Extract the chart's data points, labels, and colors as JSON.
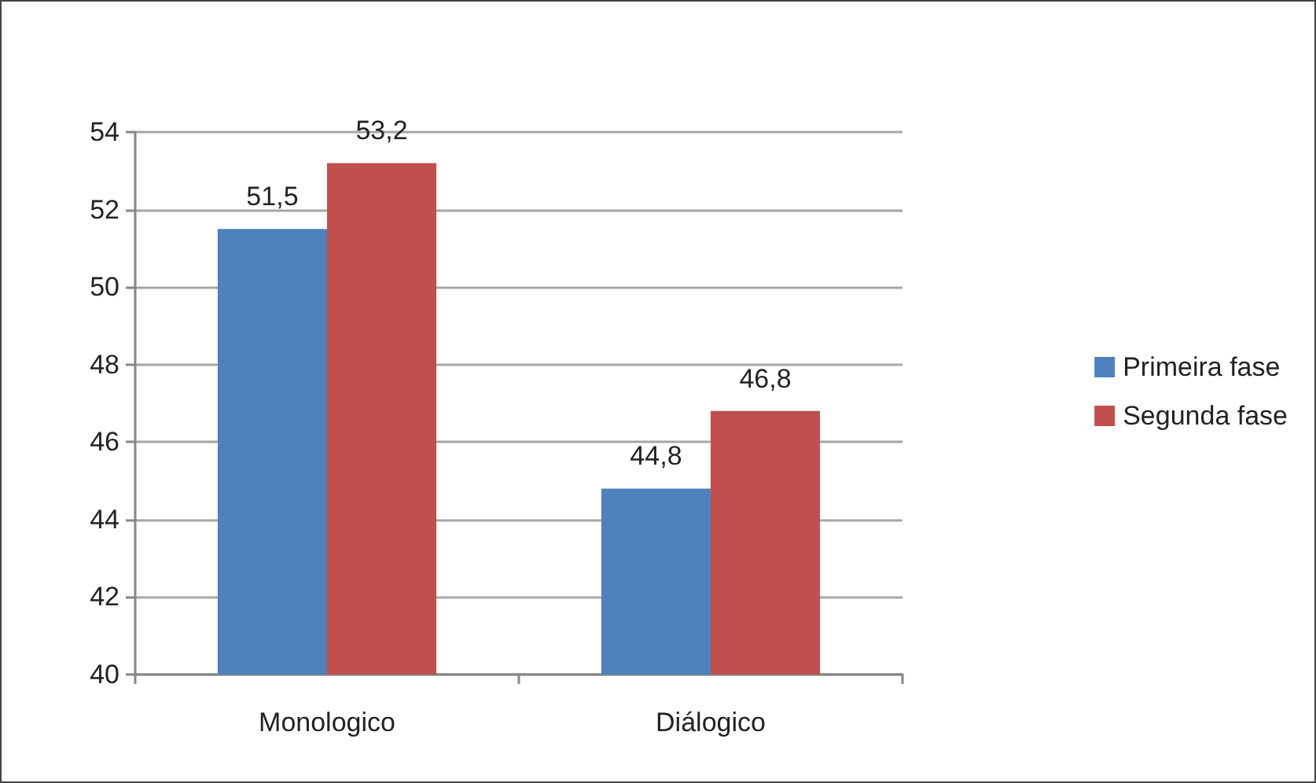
{
  "chart_data": {
    "type": "bar",
    "categories": [
      "Monologico",
      "Diálogico"
    ],
    "series": [
      {
        "name": "Primeira fase",
        "color": "#4f81bd",
        "values": [
          51.5,
          44.8
        ],
        "value_labels": [
          "51,5",
          "44,8"
        ]
      },
      {
        "name": "Segunda fase",
        "color": "#c0504d",
        "values": [
          53.2,
          46.8
        ],
        "value_labels": [
          "53,2",
          "46,8"
        ]
      }
    ],
    "ylim": [
      40,
      54
    ],
    "yticks": [
      40,
      42,
      44,
      46,
      48,
      50,
      52,
      54
    ],
    "grid": "y",
    "legend": "right"
  }
}
